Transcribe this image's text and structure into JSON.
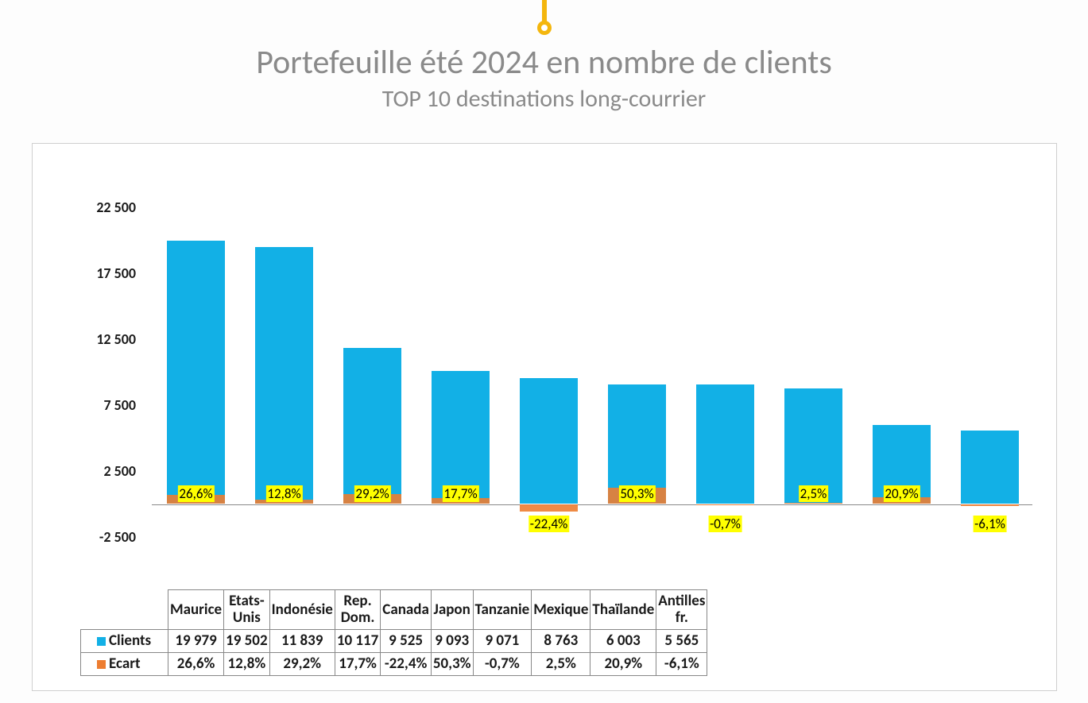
{
  "decor": {
    "stem_color": "#f4b60d"
  },
  "title": "Portefeuille été 2024 en nombre de clients",
  "subtitle": "TOP 10 destinations long-courrier",
  "title_color": "#8a8a8a",
  "title_fontsize": 42,
  "subtitle_fontsize": 30,
  "chart": {
    "type": "bar",
    "border_color": "#cfcfcf",
    "background_color": "#ffffff",
    "y_min": -2500,
    "y_max": 22500,
    "y_tick_step": 5000,
    "y_ticks": [
      "-2 500",
      "2 500",
      "7 500",
      "12 500",
      "17 500",
      "22 500"
    ],
    "y_tick_fontsize": 18,
    "bar_color": "#12b0e6",
    "ecart_color": "#ed7d31",
    "pct_label_bg": "#ffff00",
    "pct_label_fontsize": 17,
    "axis_line_color": "#888888",
    "categories": [
      {
        "name": "Maurice",
        "name2": "",
        "clients": 19979,
        "clients_label": "19 979",
        "ecart_label": "26,6%",
        "ecart_pct": 26.6
      },
      {
        "name": "Etats-",
        "name2": "Unis",
        "clients": 19502,
        "clients_label": "19 502",
        "ecart_label": "12,8%",
        "ecart_pct": 12.8
      },
      {
        "name": "Indonésie",
        "name2": "",
        "clients": 11839,
        "clients_label": "11 839",
        "ecart_label": "29,2%",
        "ecart_pct": 29.2
      },
      {
        "name": "Rep.",
        "name2": "Dom.",
        "clients": 10117,
        "clients_label": "10 117",
        "ecart_label": "17,7%",
        "ecart_pct": 17.7
      },
      {
        "name": "Canada",
        "name2": "",
        "clients": 9525,
        "clients_label": "9 525",
        "ecart_label": "-22,4%",
        "ecart_pct": -22.4
      },
      {
        "name": "Japon",
        "name2": "",
        "clients": 9093,
        "clients_label": "9 093",
        "ecart_label": "50,3%",
        "ecart_pct": 50.3
      },
      {
        "name": "Tanzanie",
        "name2": "",
        "clients": 9071,
        "clients_label": "9 071",
        "ecart_label": "-0,7%",
        "ecart_pct": -0.7
      },
      {
        "name": "Mexique",
        "name2": "",
        "clients": 8763,
        "clients_label": "8 763",
        "ecart_label": "2,5%",
        "ecart_pct": 2.5
      },
      {
        "name": "Thaïlande",
        "name2": "",
        "clients": 6003,
        "clients_label": "6 003",
        "ecart_label": "20,9%",
        "ecart_pct": 20.9
      },
      {
        "name": "Antilles",
        "name2": "fr.",
        "clients": 5565,
        "clients_label": "5 565",
        "ecart_label": "-6,1%",
        "ecart_pct": -6.1
      }
    ],
    "row_labels": {
      "clients": "Clients",
      "ecart": "Ecart"
    },
    "table_fontsize": 19
  }
}
